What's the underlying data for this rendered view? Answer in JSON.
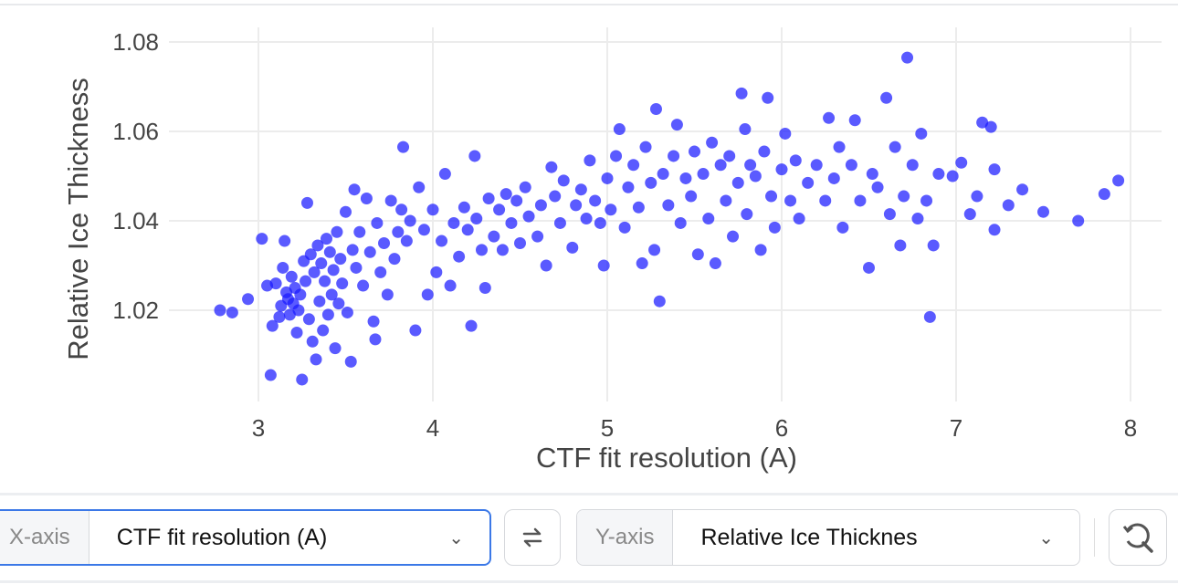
{
  "chart_data": {
    "type": "scatter",
    "xlabel": "CTF fit resolution (A)",
    "ylabel": "Relative Ice Thickness",
    "xlim": [
      2.7,
      8.2
    ],
    "ylim": [
      1.0025,
      1.0815
    ],
    "xticks": [
      "3",
      "4",
      "5",
      "6",
      "7",
      "8"
    ],
    "yticks": [
      "1.02",
      "1.04",
      "1.06",
      "1.08"
    ],
    "grid": true,
    "color": "#1a1aff",
    "points": [
      [
        2.78,
        1.02
      ],
      [
        2.85,
        1.0195
      ],
      [
        2.94,
        1.0225
      ],
      [
        3.02,
        1.036
      ],
      [
        3.05,
        1.0255
      ],
      [
        3.07,
        1.0055
      ],
      [
        3.08,
        1.0165
      ],
      [
        3.1,
        1.026
      ],
      [
        3.12,
        1.0185
      ],
      [
        3.13,
        1.021
      ],
      [
        3.14,
        1.0295
      ],
      [
        3.15,
        1.0355
      ],
      [
        3.16,
        1.024
      ],
      [
        3.17,
        1.0225
      ],
      [
        3.18,
        1.019
      ],
      [
        3.19,
        1.0275
      ],
      [
        3.2,
        1.0215
      ],
      [
        3.21,
        1.025
      ],
      [
        3.22,
        1.015
      ],
      [
        3.23,
        1.02
      ],
      [
        3.24,
        1.0235
      ],
      [
        3.25,
        1.0045
      ],
      [
        3.26,
        1.031
      ],
      [
        3.27,
        1.0265
      ],
      [
        3.28,
        1.044
      ],
      [
        3.29,
        1.018
      ],
      [
        3.3,
        1.0325
      ],
      [
        3.31,
        1.013
      ],
      [
        3.32,
        1.0285
      ],
      [
        3.33,
        1.009
      ],
      [
        3.34,
        1.0345
      ],
      [
        3.35,
        1.022
      ],
      [
        3.36,
        1.0305
      ],
      [
        3.37,
        1.0155
      ],
      [
        3.38,
        1.0265
      ],
      [
        3.39,
        1.036
      ],
      [
        3.4,
        1.019
      ],
      [
        3.41,
        1.033
      ],
      [
        3.42,
        1.0235
      ],
      [
        3.43,
        1.029
      ],
      [
        3.44,
        1.0115
      ],
      [
        3.45,
        1.0375
      ],
      [
        3.46,
        1.0215
      ],
      [
        3.47,
        1.0315
      ],
      [
        3.48,
        1.026
      ],
      [
        3.5,
        1.042
      ],
      [
        3.51,
        1.0195
      ],
      [
        3.53,
        1.0085
      ],
      [
        3.54,
        1.0335
      ],
      [
        3.55,
        1.047
      ],
      [
        3.56,
        1.0295
      ],
      [
        3.58,
        1.0375
      ],
      [
        3.6,
        1.0255
      ],
      [
        3.62,
        1.045
      ],
      [
        3.64,
        1.033
      ],
      [
        3.66,
        1.0175
      ],
      [
        3.67,
        1.0135
      ],
      [
        3.68,
        1.0395
      ],
      [
        3.7,
        1.0285
      ],
      [
        3.72,
        1.035
      ],
      [
        3.74,
        1.0235
      ],
      [
        3.76,
        1.0445
      ],
      [
        3.78,
        1.0315
      ],
      [
        3.8,
        1.0375
      ],
      [
        3.82,
        1.0425
      ],
      [
        3.83,
        1.0565
      ],
      [
        3.85,
        1.0355
      ],
      [
        3.87,
        1.04
      ],
      [
        3.9,
        1.0155
      ],
      [
        3.92,
        1.0475
      ],
      [
        3.95,
        1.038
      ],
      [
        3.97,
        1.0235
      ],
      [
        4.0,
        1.0425
      ],
      [
        4.02,
        1.0285
      ],
      [
        4.05,
        1.0355
      ],
      [
        4.07,
        1.0505
      ],
      [
        4.1,
        1.0255
      ],
      [
        4.12,
        1.0395
      ],
      [
        4.15,
        1.032
      ],
      [
        4.18,
        1.043
      ],
      [
        4.2,
        1.038
      ],
      [
        4.22,
        1.0165
      ],
      [
        4.24,
        1.0545
      ],
      [
        4.25,
        1.0405
      ],
      [
        4.28,
        1.0335
      ],
      [
        4.3,
        1.025
      ],
      [
        4.32,
        1.045
      ],
      [
        4.35,
        1.0365
      ],
      [
        4.38,
        1.0425
      ],
      [
        4.4,
        1.0335
      ],
      [
        4.42,
        1.046
      ],
      [
        4.45,
        1.0395
      ],
      [
        4.48,
        1.0445
      ],
      [
        4.5,
        1.035
      ],
      [
        4.53,
        1.0475
      ],
      [
        4.55,
        1.041
      ],
      [
        4.6,
        1.0365
      ],
      [
        4.62,
        1.0435
      ],
      [
        4.65,
        1.03
      ],
      [
        4.68,
        1.052
      ],
      [
        4.7,
        1.0455
      ],
      [
        4.73,
        1.0395
      ],
      [
        4.75,
        1.049
      ],
      [
        4.8,
        1.034
      ],
      [
        4.82,
        1.0435
      ],
      [
        4.85,
        1.047
      ],
      [
        4.88,
        1.0405
      ],
      [
        4.9,
        1.0535
      ],
      [
        4.93,
        1.0445
      ],
      [
        4.96,
        1.0395
      ],
      [
        4.98,
        1.03
      ],
      [
        5.0,
        1.0495
      ],
      [
        5.02,
        1.0425
      ],
      [
        5.05,
        1.0545
      ],
      [
        5.07,
        1.0605
      ],
      [
        5.1,
        1.0385
      ],
      [
        5.12,
        1.0475
      ],
      [
        5.15,
        1.0525
      ],
      [
        5.18,
        1.043
      ],
      [
        5.2,
        1.0305
      ],
      [
        5.22,
        1.0565
      ],
      [
        5.25,
        1.0485
      ],
      [
        5.27,
        1.0335
      ],
      [
        5.28,
        1.065
      ],
      [
        5.3,
        1.022
      ],
      [
        5.32,
        1.0505
      ],
      [
        5.35,
        1.0435
      ],
      [
        5.38,
        1.0545
      ],
      [
        5.4,
        1.0615
      ],
      [
        5.42,
        1.0395
      ],
      [
        5.45,
        1.0495
      ],
      [
        5.48,
        1.0455
      ],
      [
        5.5,
        1.0555
      ],
      [
        5.52,
        1.0325
      ],
      [
        5.55,
        1.0505
      ],
      [
        5.58,
        1.0405
      ],
      [
        5.6,
        1.0575
      ],
      [
        5.62,
        1.0305
      ],
      [
        5.65,
        1.0525
      ],
      [
        5.68,
        1.0445
      ],
      [
        5.7,
        1.0545
      ],
      [
        5.72,
        1.0365
      ],
      [
        5.75,
        1.0485
      ],
      [
        5.77,
        1.0685
      ],
      [
        5.79,
        1.0605
      ],
      [
        5.8,
        1.0415
      ],
      [
        5.82,
        1.0525
      ],
      [
        5.85,
        1.05
      ],
      [
        5.88,
        1.0335
      ],
      [
        5.9,
        1.0555
      ],
      [
        5.92,
        1.0675
      ],
      [
        5.94,
        1.0455
      ],
      [
        5.96,
        1.0385
      ],
      [
        6.0,
        1.0515
      ],
      [
        6.02,
        1.0595
      ],
      [
        6.05,
        1.0445
      ],
      [
        6.08,
        1.0535
      ],
      [
        6.1,
        1.0405
      ],
      [
        6.15,
        1.0485
      ],
      [
        6.2,
        1.0525
      ],
      [
        6.25,
        1.0445
      ],
      [
        6.27,
        1.063
      ],
      [
        6.3,
        1.0495
      ],
      [
        6.33,
        1.0565
      ],
      [
        6.35,
        1.0385
      ],
      [
        6.4,
        1.0525
      ],
      [
        6.42,
        1.0625
      ],
      [
        6.45,
        1.0445
      ],
      [
        6.5,
        1.0295
      ],
      [
        6.52,
        1.0505
      ],
      [
        6.55,
        1.0475
      ],
      [
        6.6,
        1.0675
      ],
      [
        6.62,
        1.0415
      ],
      [
        6.65,
        1.0565
      ],
      [
        6.68,
        1.0345
      ],
      [
        6.7,
        1.0455
      ],
      [
        6.72,
        1.0765
      ],
      [
        6.75,
        1.0525
      ],
      [
        6.78,
        1.0405
      ],
      [
        6.8,
        1.0595
      ],
      [
        6.83,
        1.0445
      ],
      [
        6.85,
        1.0185
      ],
      [
        6.87,
        1.0345
      ],
      [
        6.9,
        1.0505
      ],
      [
        6.98,
        1.05
      ],
      [
        7.03,
        1.053
      ],
      [
        7.08,
        1.0415
      ],
      [
        7.12,
        1.0455
      ],
      [
        7.15,
        1.062
      ],
      [
        7.2,
        1.061
      ],
      [
        7.22,
        1.0515
      ],
      [
        7.22,
        1.038
      ],
      [
        7.3,
        1.0435
      ],
      [
        7.38,
        1.047
      ],
      [
        7.5,
        1.042
      ],
      [
        7.7,
        1.04
      ],
      [
        7.85,
        1.046
      ],
      [
        7.93,
        1.049
      ]
    ]
  },
  "controls": {
    "x_label": "X-axis",
    "x_value": "CTF fit resolution (A)",
    "y_label": "Y-axis",
    "y_value": "Relative Ice Thicknes",
    "swap_icon": "swap-arrows-icon",
    "reset_icon": "zoom-reset-icon"
  }
}
